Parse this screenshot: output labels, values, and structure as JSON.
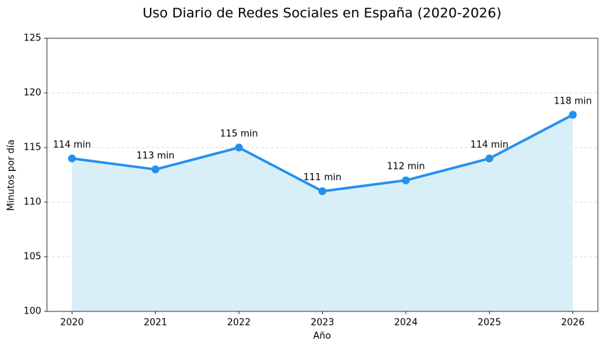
{
  "chart_data": {
    "type": "line",
    "title": "Uso Diario de Redes Sociales en España (2020-2026)",
    "x_label": "Año",
    "y_label": "Minutos por día",
    "categories": [
      "2020",
      "2021",
      "2022",
      "2023",
      "2024",
      "2025",
      "2026"
    ],
    "values": [
      114,
      113,
      115,
      111,
      112,
      114,
      118
    ],
    "value_labels": [
      "114 min",
      "113 min",
      "115 min",
      "111 min",
      "112 min",
      "114 min",
      "118 min"
    ],
    "color": "#2390ee",
    "fill_color": "#d9eff8",
    "ylim": [
      100,
      125
    ],
    "yticks": [
      100,
      105,
      110,
      115,
      120,
      125
    ],
    "grid": true
  }
}
